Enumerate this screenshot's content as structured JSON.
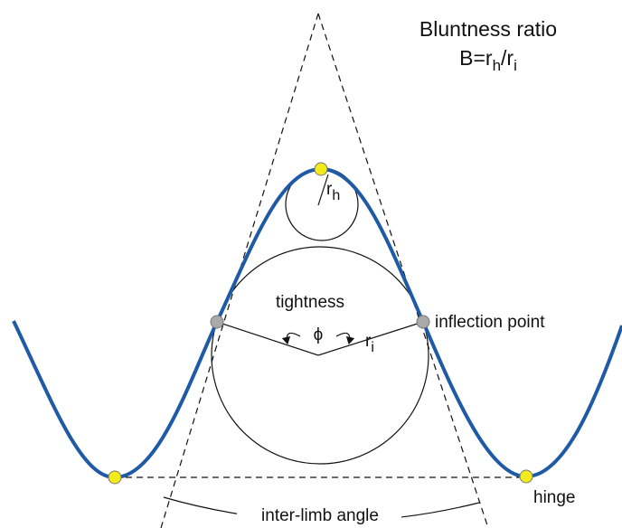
{
  "title": {
    "line1": "Bluntness ratio",
    "formula": {
      "base": "B=r",
      "sub1": "h",
      "mid": "/r",
      "sub2": "i"
    }
  },
  "labels": {
    "rh": {
      "base": "r",
      "sub": "h"
    },
    "tightness": "tightness",
    "phi": "ϕ",
    "ri": {
      "base": "r",
      "sub": "i"
    },
    "inflection": "inflection point",
    "hinge": "hinge",
    "interlimb": "inter-limb angle"
  }
}
